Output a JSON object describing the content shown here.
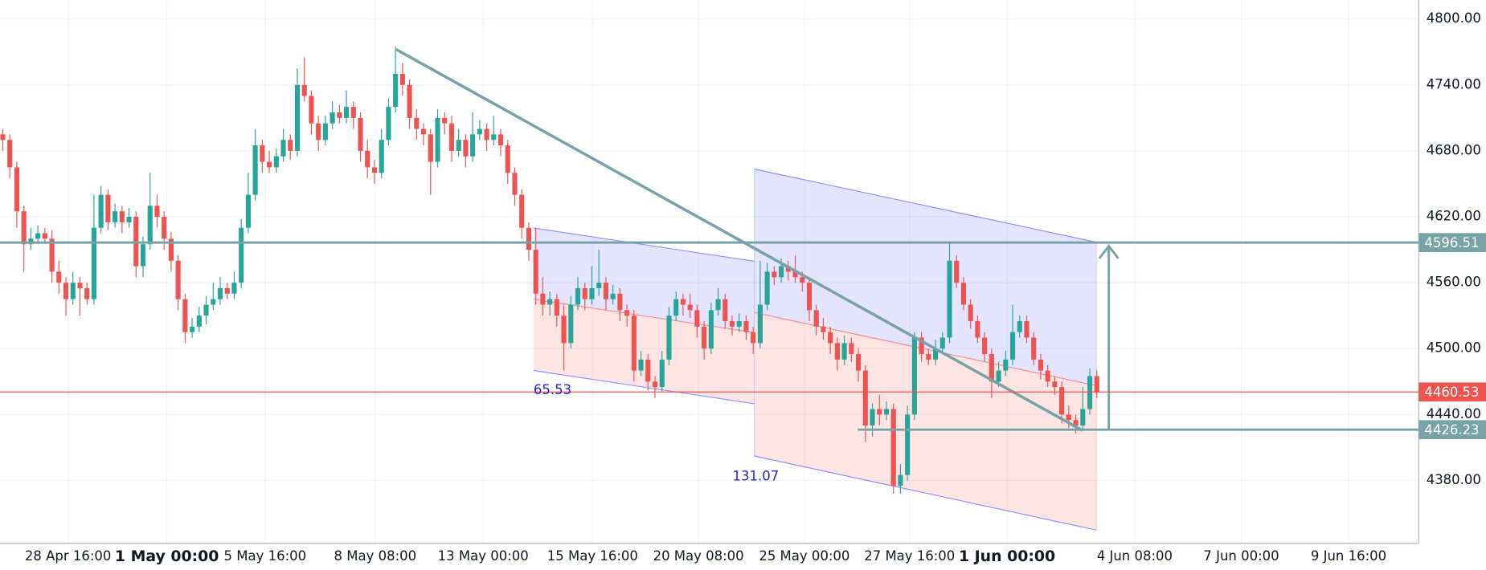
{
  "chart_data": {
    "type": "candlestick",
    "up_color": "#26a69a",
    "down_color": "#ef5350",
    "xlim": [
      -0.4,
      201.9
    ],
    "ylim": [
      4322.7,
      4817.3
    ],
    "yticks": [
      {
        "value": 4380,
        "label": "4380.00"
      },
      {
        "value": 4440,
        "label": "4440.00"
      },
      {
        "value": 4500,
        "label": "4500.00"
      },
      {
        "value": 4560,
        "label": "4560.00"
      },
      {
        "value": 4620,
        "label": "4620.00"
      },
      {
        "value": 4680,
        "label": "4680.00"
      },
      {
        "value": 4740,
        "label": "4740.00"
      },
      {
        "value": 4800,
        "label": "4800.00"
      }
    ],
    "xticks": [
      {
        "value": 9.3,
        "label": "28 Apr 16:00"
      },
      {
        "value": 23.4,
        "label": "1 May 00:00",
        "bold": true
      },
      {
        "value": 37.4,
        "label": "5 May 16:00"
      },
      {
        "value": 53.1,
        "label": "8 May 08:00"
      },
      {
        "value": 68.5,
        "label": "13 May 00:00"
      },
      {
        "value": 84.1,
        "label": "15 May 16:00"
      },
      {
        "value": 99.2,
        "label": "20 May 08:00"
      },
      {
        "value": 114.3,
        "label": "25 May 00:00"
      },
      {
        "value": 129.3,
        "label": "27 May 16:00"
      },
      {
        "value": 143.2,
        "label": "1 Jun 00:00",
        "bold": true
      },
      {
        "value": 161.4,
        "label": "4 Jun 08:00"
      },
      {
        "value": 176.6,
        "label": "7 Jun 00:00"
      },
      {
        "value": 191.9,
        "label": "9 Jun 16:00"
      }
    ],
    "grid": true,
    "channel_labels": [
      65.53,
      131.07
    ],
    "price_lines": [
      {
        "value": 4596.51,
        "color": "#78a3a6",
        "x_start": -0.4
      },
      {
        "value": 4460.53,
        "color": "#ef5350",
        "x_start": -0.4
      },
      {
        "value": 4426.23,
        "color": "#78a3a6",
        "x_start": 121.9
      }
    ],
    "candles": [
      [
        4695,
        4700,
        4680,
        4690
      ],
      [
        4690,
        4695,
        4655,
        4665
      ],
      [
        4665,
        4670,
        4610,
        4625
      ],
      [
        4625,
        4630,
        4570,
        4595
      ],
      [
        4595,
        4610,
        4590,
        4600
      ],
      [
        4600,
        4612,
        4595,
        4605
      ],
      [
        4605,
        4610,
        4595,
        4600
      ],
      [
        4600,
        4608,
        4560,
        4570
      ],
      [
        4570,
        4580,
        4550,
        4560
      ],
      [
        4560,
        4565,
        4530,
        4545
      ],
      [
        4545,
        4570,
        4540,
        4560
      ],
      [
        4560,
        4565,
        4530,
        4555
      ],
      [
        4555,
        4560,
        4540,
        4545
      ],
      [
        4545,
        4640,
        4540,
        4610
      ],
      [
        4610,
        4648,
        4605,
        4640
      ],
      [
        4640,
        4645,
        4608,
        4615
      ],
      [
        4615,
        4632,
        4610,
        4625
      ],
      [
        4625,
        4630,
        4605,
        4615
      ],
      [
        4615,
        4628,
        4610,
        4620
      ],
      [
        4620,
        4625,
        4565,
        4575
      ],
      [
        4575,
        4602,
        4565,
        4595
      ],
      [
        4595,
        4660,
        4590,
        4630
      ],
      [
        4630,
        4640,
        4610,
        4620
      ],
      [
        4620,
        4625,
        4590,
        4600
      ],
      [
        4600,
        4606,
        4570,
        4580
      ],
      [
        4580,
        4585,
        4535,
        4545
      ],
      [
        4545,
        4550,
        4505,
        4515
      ],
      [
        4515,
        4528,
        4510,
        4520
      ],
      [
        4520,
        4538,
        4515,
        4530
      ],
      [
        4530,
        4548,
        4522,
        4540
      ],
      [
        4540,
        4560,
        4535,
        4545
      ],
      [
        4545,
        4565,
        4540,
        4555
      ],
      [
        4555,
        4560,
        4545,
        4550
      ],
      [
        4550,
        4570,
        4545,
        4560
      ],
      [
        4560,
        4618,
        4555,
        4610
      ],
      [
        4610,
        4660,
        4605,
        4640
      ],
      [
        4640,
        4700,
        4635,
        4685
      ],
      [
        4685,
        4690,
        4660,
        4670
      ],
      [
        4670,
        4680,
        4660,
        4665
      ],
      [
        4665,
        4682,
        4660,
        4675
      ],
      [
        4675,
        4700,
        4670,
        4690
      ],
      [
        4690,
        4695,
        4672,
        4680
      ],
      [
        4680,
        4755,
        4675,
        4740
      ],
      [
        4740,
        4765,
        4725,
        4730
      ],
      [
        4730,
        4735,
        4695,
        4705
      ],
      [
        4705,
        4712,
        4680,
        4690
      ],
      [
        4690,
        4712,
        4685,
        4705
      ],
      [
        4705,
        4725,
        4700,
        4715
      ],
      [
        4715,
        4722,
        4705,
        4710
      ],
      [
        4710,
        4735,
        4705,
        4720
      ],
      [
        4720,
        4725,
        4700,
        4710
      ],
      [
        4710,
        4715,
        4670,
        4680
      ],
      [
        4680,
        4690,
        4655,
        4665
      ],
      [
        4665,
        4672,
        4650,
        4660
      ],
      [
        4660,
        4700,
        4655,
        4690
      ],
      [
        4690,
        4728,
        4685,
        4720
      ],
      [
        4720,
        4775,
        4715,
        4750
      ],
      [
        4750,
        4760,
        4730,
        4740
      ],
      [
        4740,
        4745,
        4700,
        4710
      ],
      [
        4710,
        4718,
        4690,
        4700
      ],
      [
        4700,
        4705,
        4685,
        4695
      ],
      [
        4695,
        4700,
        4640,
        4670
      ],
      [
        4670,
        4718,
        4665,
        4710
      ],
      [
        4710,
        4715,
        4695,
        4705
      ],
      [
        4705,
        4712,
        4670,
        4680
      ],
      [
        4680,
        4700,
        4675,
        4690
      ],
      [
        4690,
        4695,
        4665,
        4675
      ],
      [
        4675,
        4715,
        4670,
        4695
      ],
      [
        4695,
        4708,
        4690,
        4700
      ],
      [
        4700,
        4705,
        4680,
        4690
      ],
      [
        4690,
        4712,
        4685,
        4695
      ],
      [
        4695,
        4700,
        4675,
        4685
      ],
      [
        4685,
        4690,
        4650,
        4660
      ],
      [
        4660,
        4665,
        4630,
        4640
      ],
      [
        4640,
        4645,
        4600,
        4610
      ],
      [
        4610,
        4615,
        4580,
        4590
      ],
      [
        4590,
        4610,
        4540,
        4550
      ],
      [
        4550,
        4565,
        4530,
        4540
      ],
      [
        4540,
        4552,
        4530,
        4545
      ],
      [
        4545,
        4550,
        4520,
        4530
      ],
      [
        4530,
        4540,
        4480,
        4505
      ],
      [
        4505,
        4548,
        4500,
        4540
      ],
      [
        4540,
        4565,
        4535,
        4555
      ],
      [
        4555,
        4560,
        4535,
        4545
      ],
      [
        4545,
        4575,
        4540,
        4555
      ],
      [
        4555,
        4590,
        4548,
        4560
      ],
      [
        4560,
        4565,
        4535,
        4545
      ],
      [
        4545,
        4558,
        4540,
        4550
      ],
      [
        4550,
        4555,
        4525,
        4535
      ],
      [
        4535,
        4540,
        4520,
        4530
      ],
      [
        4530,
        4535,
        4470,
        4480
      ],
      [
        4480,
        4498,
        4475,
        4490
      ],
      [
        4490,
        4495,
        4462,
        4470
      ],
      [
        4470,
        4475,
        4455,
        4465
      ],
      [
        4465,
        4498,
        4460,
        4490
      ],
      [
        4490,
        4538,
        4485,
        4530
      ],
      [
        4530,
        4552,
        4525,
        4545
      ],
      [
        4545,
        4550,
        4530,
        4540
      ],
      [
        4540,
        4550,
        4528,
        4535
      ],
      [
        4535,
        4540,
        4510,
        4520
      ],
      [
        4520,
        4525,
        4490,
        4500
      ],
      [
        4500,
        4542,
        4495,
        4535
      ],
      [
        4535,
        4555,
        4530,
        4545
      ],
      [
        4545,
        4550,
        4518,
        4525
      ],
      [
        4525,
        4530,
        4512,
        4520
      ],
      [
        4520,
        4532,
        4515,
        4525
      ],
      [
        4525,
        4530,
        4508,
        4515
      ],
      [
        4515,
        4520,
        4495,
        4505
      ],
      [
        4505,
        4580,
        4500,
        4540
      ],
      [
        4540,
        4578,
        4535,
        4570
      ],
      [
        4570,
        4575,
        4558,
        4565
      ],
      [
        4565,
        4582,
        4560,
        4575
      ],
      [
        4575,
        4580,
        4562,
        4570
      ],
      [
        4570,
        4585,
        4560,
        4565
      ],
      [
        4565,
        4570,
        4552,
        4560
      ],
      [
        4560,
        4565,
        4525,
        4535
      ],
      [
        4535,
        4540,
        4512,
        4520
      ],
      [
        4520,
        4528,
        4508,
        4515
      ],
      [
        4515,
        4520,
        4495,
        4505
      ],
      [
        4505,
        4510,
        4480,
        4490
      ],
      [
        4490,
        4512,
        4485,
        4505
      ],
      [
        4505,
        4510,
        4488,
        4495
      ],
      [
        4495,
        4500,
        4470,
        4480
      ],
      [
        4480,
        4485,
        4415,
        4430
      ],
      [
        4430,
        4450,
        4420,
        4445
      ],
      [
        4445,
        4458,
        4430,
        4440
      ],
      [
        4440,
        4452,
        4435,
        4445
      ],
      [
        4445,
        4450,
        4368,
        4375
      ],
      [
        4375,
        4395,
        4368,
        4385
      ],
      [
        4385,
        4448,
        4380,
        4440
      ],
      [
        4440,
        4515,
        4435,
        4510
      ],
      [
        4510,
        4515,
        4488,
        4495
      ],
      [
        4495,
        4500,
        4485,
        4490
      ],
      [
        4490,
        4508,
        4485,
        4500
      ],
      [
        4500,
        4515,
        4495,
        4510
      ],
      [
        4510,
        4597,
        4505,
        4580
      ],
      [
        4580,
        4585,
        4555,
        4560
      ],
      [
        4560,
        4565,
        4535,
        4540
      ],
      [
        4540,
        4545,
        4518,
        4525
      ],
      [
        4525,
        4530,
        4505,
        4510
      ],
      [
        4510,
        4515,
        4488,
        4495
      ],
      [
        4495,
        4500,
        4455,
        4470
      ],
      [
        4470,
        4488,
        4465,
        4480
      ],
      [
        4480,
        4498,
        4475,
        4490
      ],
      [
        4490,
        4540,
        4485,
        4515
      ],
      [
        4515,
        4530,
        4510,
        4525
      ],
      [
        4525,
        4530,
        4505,
        4510
      ],
      [
        4510,
        4515,
        4485,
        4490
      ],
      [
        4490,
        4495,
        4472,
        4480
      ],
      [
        4480,
        4485,
        4465,
        4470
      ],
      [
        4470,
        4475,
        4458,
        4465
      ],
      [
        4465,
        4470,
        4432,
        4440
      ],
      [
        4440,
        4448,
        4428,
        4435
      ],
      [
        4435,
        4440,
        4423,
        4430
      ],
      [
        4430,
        4465,
        4425,
        4445
      ],
      [
        4445,
        4482,
        4440,
        4475
      ],
      [
        4475,
        4480,
        4455,
        4460.53
      ]
    ]
  }
}
